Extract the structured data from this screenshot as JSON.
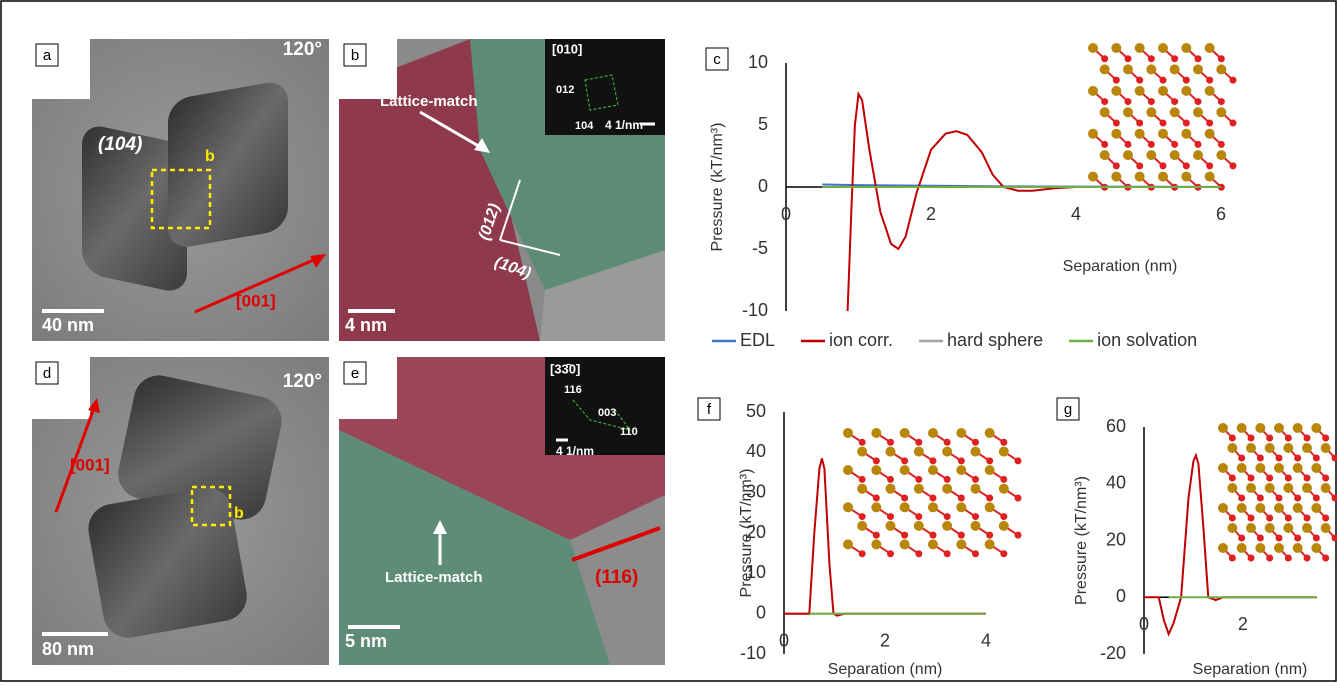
{
  "panels": [
    {
      "label": "a",
      "angle": "120°",
      "facet": "(104)",
      "box_label": "b",
      "direction": "[001]",
      "scale_bar": "40 nm"
    },
    {
      "label": "b",
      "note": "Lattice-match",
      "zone": "[010]",
      "spot_1": "012",
      "spot_2": "104",
      "inset_scale": "4 1/nm",
      "plane_1": "(012)",
      "plane_2": "(104)",
      "scale_bar": "4 nm"
    },
    {
      "label": "d",
      "angle": "120°",
      "direction": "[001]",
      "box_label": "b",
      "scale_bar": "80 nm"
    },
    {
      "label": "e",
      "zone": "[33̄0]",
      "spot_1": "116",
      "spot_2": "003",
      "spot_3": "110",
      "inset_scale": "4 1/nm",
      "plane": "(116)",
      "note": "Lattice-match",
      "scale_bar": "5 nm"
    }
  ],
  "chart_data": [
    {
      "type": "line",
      "panel_label": "c",
      "x_label": "Separation (nm)",
      "y_label": "Pressure (kT/nm³)",
      "xlim": [
        0,
        6
      ],
      "ylim": [
        -10,
        10
      ],
      "xticks": [
        0,
        2,
        4,
        6
      ],
      "yticks": [
        -10,
        -5,
        0,
        5,
        10
      ],
      "legend": "bottom",
      "series": [
        {
          "name": "EDL",
          "color": "#4472c4",
          "x": [
            0.5,
            1,
            2,
            3,
            4,
            5,
            6
          ],
          "values": [
            0.2,
            0.15,
            0.1,
            0.05,
            0.03,
            0.02,
            0.01
          ]
        },
        {
          "name": "ion corr.",
          "color": "#c00000",
          "x": [
            0.85,
            0.9,
            0.95,
            1.0,
            1.05,
            1.15,
            1.3,
            1.45,
            1.55,
            1.65,
            1.8,
            2.0,
            2.2,
            2.35,
            2.5,
            2.7,
            2.85,
            3.0,
            3.2,
            3.4,
            3.7,
            4.0,
            5,
            6
          ],
          "values": [
            -10,
            -2,
            5,
            7.5,
            7,
            3,
            -2,
            -4.6,
            -5,
            -4,
            -0.5,
            3,
            4.3,
            4.5,
            4.2,
            2.8,
            1,
            0,
            -0.3,
            -0.3,
            -0.1,
            0,
            0,
            0
          ]
        },
        {
          "name": "hard sphere",
          "color": "#a5a5a5",
          "x": [
            0.5,
            6
          ],
          "values": [
            0,
            0
          ]
        },
        {
          "name": "ion solvation",
          "color": "#70ad47",
          "x": [
            0.5,
            1,
            2,
            3,
            4,
            5,
            6
          ],
          "values": [
            0,
            0,
            0,
            0,
            0,
            0,
            0
          ]
        }
      ]
    },
    {
      "type": "line",
      "panel_label": "f",
      "x_label": "Separation (nm)",
      "y_label": "Pressure (kT/nm³)",
      "xlim": [
        0,
        4
      ],
      "ylim": [
        -10,
        50
      ],
      "xticks": [
        0,
        2,
        4
      ],
      "yticks": [
        -10,
        0,
        10,
        20,
        30,
        40,
        50
      ],
      "series": [
        {
          "color": "#c00000",
          "x": [
            0,
            0.5,
            0.6,
            0.7,
            0.75,
            0.8,
            0.9,
            0.98,
            1.05,
            1.2,
            4
          ],
          "values": [
            0,
            0,
            20,
            36,
            38.5,
            36,
            12,
            0,
            -0.5,
            0,
            0
          ]
        },
        {
          "color": "#70ad47",
          "x": [
            0.5,
            4
          ],
          "values": [
            0,
            0
          ]
        }
      ]
    },
    {
      "type": "line",
      "panel_label": "g",
      "x_label": "Separation (nm)",
      "y_label": "Pressure (kT/nm³)",
      "xlim": [
        0,
        3.5
      ],
      "ylim": [
        -20,
        60
      ],
      "xticks": [
        0,
        2
      ],
      "yticks": [
        -20,
        0,
        20,
        40,
        60
      ],
      "series": [
        {
          "color": "#c00000",
          "x": [
            0,
            0.3,
            0.4,
            0.5,
            0.6,
            0.75,
            0.9,
            1.0,
            1.05,
            1.1,
            1.2,
            1.3,
            1.45,
            1.6,
            3.5
          ],
          "values": [
            0,
            0,
            -8,
            -13,
            -9,
            0,
            35,
            48,
            50,
            47,
            25,
            0,
            -1,
            0,
            0
          ]
        },
        {
          "color": "#70ad47",
          "x": [
            0.5,
            3.5
          ],
          "values": [
            0,
            0
          ]
        }
      ]
    }
  ]
}
